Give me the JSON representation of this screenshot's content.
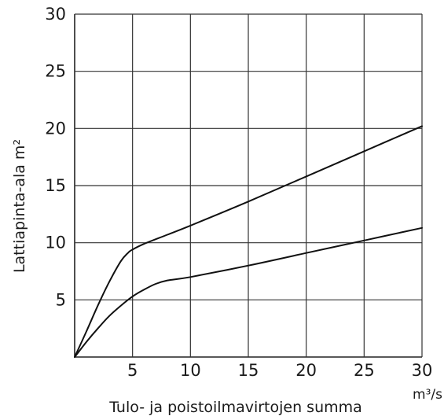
{
  "chart_data": {
    "type": "line",
    "xlabel": "Tulo- ja poistoilmavirtojen summa",
    "xunit": "m³/s",
    "ylabel": "Lattiapinta-ala m²",
    "xlim": [
      0,
      30
    ],
    "ylim": [
      0,
      30
    ],
    "xticks": [
      5,
      10,
      15,
      20,
      25,
      30
    ],
    "yticks": [
      5,
      10,
      15,
      20,
      25,
      30
    ],
    "grid": true,
    "series": [
      {
        "points": [
          [
            0,
            0
          ],
          [
            1,
            2.2
          ],
          [
            2,
            4.5
          ],
          [
            3,
            6.6
          ],
          [
            4,
            8.4
          ],
          [
            4.6,
            9.1
          ],
          [
            5,
            9.4
          ],
          [
            6,
            9.9
          ],
          [
            8,
            10.7
          ],
          [
            10,
            11.5
          ],
          [
            15,
            13.6
          ],
          [
            20,
            15.8
          ],
          [
            25,
            18.0
          ],
          [
            30,
            20.2
          ]
        ]
      },
      {
        "points": [
          [
            0,
            0
          ],
          [
            1,
            1.3
          ],
          [
            2,
            2.5
          ],
          [
            3,
            3.6
          ],
          [
            4,
            4.5
          ],
          [
            5,
            5.3
          ],
          [
            6,
            5.9
          ],
          [
            7,
            6.4
          ],
          [
            8,
            6.7
          ],
          [
            10,
            7.0
          ],
          [
            15,
            8.0
          ],
          [
            20,
            9.1
          ],
          [
            25,
            10.2
          ],
          [
            30,
            11.3
          ]
        ]
      }
    ]
  }
}
